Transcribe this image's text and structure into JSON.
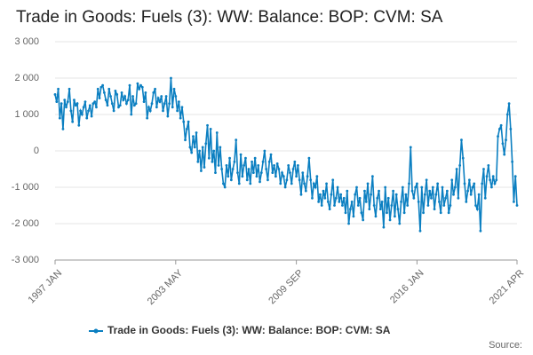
{
  "chart_data": {
    "type": "line",
    "title": "Trade in Goods: Fuels (3): WW: Balance: BOP: CVM: SA",
    "source": "Source:",
    "categories": [
      "1997 JAN",
      null,
      null,
      null,
      null,
      null,
      null,
      null,
      null,
      null,
      null,
      null,
      null,
      null,
      null,
      null,
      null,
      null,
      null,
      null,
      null,
      null,
      null,
      null,
      null,
      null,
      null,
      null,
      null,
      null,
      null,
      null,
      null,
      null,
      null,
      null,
      null,
      null,
      null,
      null,
      null,
      null,
      null,
      null,
      null,
      null,
      null,
      null,
      null,
      null,
      null,
      null,
      null,
      null,
      null,
      null,
      null,
      null,
      null,
      null,
      null,
      null,
      null,
      null,
      null,
      null,
      null,
      null,
      null,
      null,
      null,
      null,
      null,
      null,
      null,
      null,
      "2003 MAY",
      null,
      null,
      null,
      null,
      null,
      null,
      null,
      null,
      null,
      null,
      null,
      null,
      null,
      null,
      null,
      null,
      null,
      null,
      null,
      null,
      null,
      null,
      null,
      null,
      null,
      null,
      null,
      null,
      null,
      null,
      null,
      null,
      null,
      null,
      null,
      null,
      null,
      null,
      null,
      null,
      null,
      null,
      null,
      null,
      null,
      null,
      null,
      null,
      null,
      null,
      null,
      null,
      null,
      null,
      null,
      null,
      null,
      null,
      null,
      null,
      null,
      null,
      null,
      null,
      null,
      null,
      null,
      null,
      null,
      null,
      null,
      null,
      null,
      null,
      null,
      "2009 SEP",
      null,
      null,
      null,
      null,
      null,
      null,
      null,
      null,
      null,
      null,
      null,
      null,
      null,
      null,
      null,
      null,
      null,
      null,
      null,
      null,
      null,
      null,
      null,
      null,
      null,
      null,
      null,
      null,
      null,
      null,
      null,
      null,
      null,
      null,
      null,
      null,
      null,
      null,
      null,
      null,
      null,
      null,
      null,
      null,
      null,
      null,
      null,
      null,
      null,
      null,
      null,
      null,
      null,
      null,
      null,
      null,
      null,
      null,
      null,
      null,
      null,
      null,
      null,
      null,
      null,
      null,
      null,
      null,
      null,
      null,
      null,
      null,
      null,
      null,
      null,
      "2016 JAN",
      null,
      null,
      null,
      null,
      null,
      null,
      null,
      null,
      null,
      null,
      null,
      null,
      null,
      null,
      null,
      null,
      null,
      null,
      null,
      null,
      null,
      null,
      null,
      null,
      null,
      null,
      null,
      null,
      null,
      null,
      null,
      null,
      null,
      null,
      null,
      null,
      null,
      null,
      null,
      null,
      null,
      null,
      null,
      null,
      null,
      null,
      null,
      null,
      null,
      null,
      null,
      null,
      null,
      null,
      null,
      null,
      null,
      null,
      null,
      null,
      null,
      null,
      "2021 APR"
    ],
    "series": [
      {
        "name": "Trade in Goods: Fuels (3): WW: Balance: BOP: CVM: SA",
        "color": "#0b7fc1",
        "values": [
          1550,
          1350,
          1700,
          900,
          1300,
          600,
          1400,
          1200,
          1350,
          1700,
          1100,
          800,
          1400,
          1250,
          1300,
          700,
          1100,
          1000,
          1200,
          1350,
          900,
          1100,
          1250,
          950,
          1300,
          1350,
          1200,
          1700,
          1450,
          1750,
          1800,
          1600,
          1400,
          1250,
          1700,
          1500,
          1300,
          1100,
          1650,
          1550,
          1200,
          1250,
          1600,
          1400,
          1500,
          1300,
          1400,
          1800,
          1000,
          1500,
          1250,
          1300,
          1850,
          1700,
          1800,
          1750,
          1350,
          1600,
          900,
          1200,
          1100,
          1300,
          1600,
          1700,
          1200,
          1450,
          1350,
          1500,
          1100,
          1300,
          1500,
          950,
          1300,
          2000,
          1200,
          1700,
          1500,
          1100,
          1350,
          900,
          1200,
          800,
          300,
          600,
          800,
          100,
          -50,
          400,
          100,
          500,
          -300,
          0,
          -550,
          100,
          -450,
          200,
          700,
          -200,
          600,
          -300,
          0,
          -600,
          500,
          -400,
          100,
          -500,
          -900,
          -1000,
          -400,
          -700,
          -200,
          -800,
          -500,
          -300,
          300,
          -600,
          -900,
          -100,
          -700,
          -400,
          -200,
          -800,
          -500,
          -900,
          -300,
          -600,
          -200,
          -700,
          -400,
          -850,
          -600,
          -300,
          0,
          -500,
          -800,
          -300,
          -100,
          -600,
          -400,
          -700,
          -350,
          -500,
          -900,
          -600,
          -700,
          -1000,
          -800,
          -400,
          -600,
          -900,
          -500,
          -300,
          -700,
          -400,
          -800,
          -1200,
          -600,
          -900,
          -1100,
          -700,
          -200,
          -800,
          -1300,
          -900,
          -1000,
          -700,
          -1400,
          -1200,
          -1500,
          -1100,
          -1300,
          -900,
          -1400,
          -1600,
          -1200,
          -800,
          -1500,
          -1300,
          -1000,
          -1400,
          -1200,
          -1500,
          -1300,
          -1700,
          -1100,
          -2000,
          -1600,
          -1400,
          -1800,
          -1200,
          -1000,
          -1500,
          -1300,
          -1700,
          -1900,
          -1100,
          -1400,
          -900,
          -1600,
          -1200,
          -700,
          -1500,
          -1800,
          -1300,
          -1100,
          -1600,
          -1400,
          -2100,
          -1000,
          -1700,
          -1300,
          -1900,
          -1500,
          -1100,
          -1800,
          -1200,
          -1600,
          -2000,
          -1400,
          -1000,
          -1700,
          -1200,
          -1500,
          -900,
          100,
          -1100,
          -1300,
          -1000,
          -900,
          -1400,
          -2200,
          -1000,
          -1700,
          -1200,
          -800,
          -1500,
          -1100,
          -1300,
          -1000,
          -1600,
          -1200,
          -900,
          -1400,
          -1700,
          -1000,
          -1500,
          -1300,
          -1100,
          -1700,
          -1500,
          -800,
          -1200,
          -1000,
          -500,
          -1300,
          -400,
          300,
          -200,
          -900,
          -1400,
          -1100,
          -800,
          -1200,
          -1000,
          -900,
          -1500,
          -1600,
          -1200,
          -2200,
          -900,
          -500,
          -1300,
          -700,
          -400,
          -800,
          -1000,
          -700,
          -900,
          -800,
          400,
          600,
          700,
          200,
          -100,
          300,
          1000,
          1300,
          600,
          -300,
          -1400,
          -700,
          -1500
        ]
      }
    ],
    "ylim": [
      -3000,
      3000
    ],
    "yticks": [
      {
        "value": -3000,
        "label": "-3 000"
      },
      {
        "value": -2000,
        "label": "-2 000"
      },
      {
        "value": -1000,
        "label": "-1 000"
      },
      0,
      {
        "value": 1000,
        "label": "1 000"
      },
      {
        "value": 2000,
        "label": "2 000"
      },
      {
        "value": 3000,
        "label": "3 000"
      }
    ],
    "grid": true
  }
}
